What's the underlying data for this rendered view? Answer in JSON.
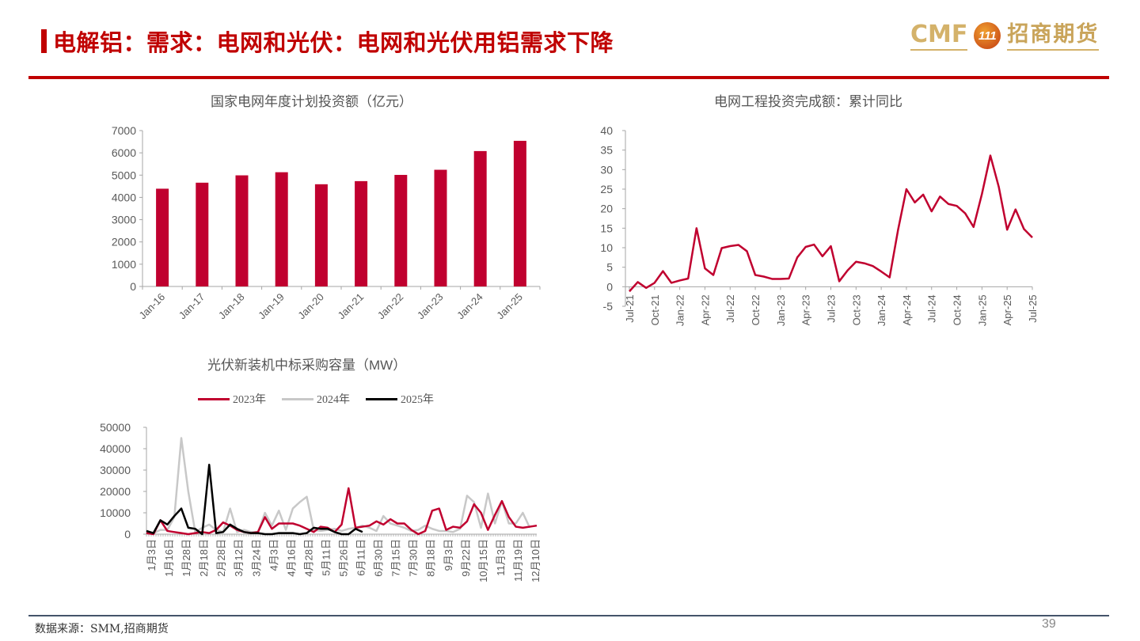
{
  "header": {
    "title": "电解铝：需求：电网和光伏：电网和光伏用铝需求下降",
    "logo_text": "CMF",
    "logo_badge": "111",
    "logo_cn": "招商期货"
  },
  "footer": {
    "source": "数据来源：SMM,招商期货",
    "page_number": "39"
  },
  "colors": {
    "accent": "#c00000",
    "series_red": "#c0002f",
    "series_gray": "#c8c8c8",
    "series_black": "#000000",
    "logo_gold": "#d4b26a"
  },
  "chart_data": [
    {
      "type": "bar",
      "title": "国家电网年度计划投资额（亿元）",
      "categories": [
        "Jan-16",
        "Jan-17",
        "Jan-18",
        "Jan-19",
        "Jan-20",
        "Jan-21",
        "Jan-22",
        "Jan-23",
        "Jan-24",
        "Jan-25"
      ],
      "values": [
        4390,
        4660,
        4990,
        5130,
        4590,
        4730,
        5010,
        5240,
        6080,
        6540
      ],
      "yticks": [
        0,
        1000,
        2000,
        3000,
        4000,
        5000,
        6000,
        7000
      ],
      "ylim": [
        0,
        7000
      ],
      "xlabel": "",
      "ylabel": "",
      "grid": false,
      "legend": null
    },
    {
      "type": "line",
      "title": "电网工程投资完成额：累计同比",
      "x_ticks": [
        "Jul-21",
        "Oct-21",
        "Jan-22",
        "Apr-22",
        "Jul-22",
        "Oct-22",
        "Jan-23",
        "Apr-23",
        "Jul-23",
        "Oct-23",
        "Jan-24",
        "Apr-24",
        "Jul-24",
        "Oct-24",
        "Jan-25",
        "Apr-25",
        "Jul-25"
      ],
      "series": [
        {
          "name": "累计同比",
          "values": [
            -1.2,
            1.2,
            -0.3,
            1.0,
            4.0,
            1.0,
            1.6,
            2.1,
            15.0,
            4.7,
            3.0,
            9.9,
            10.4,
            10.7,
            9.1,
            3.0,
            2.6,
            2.0,
            2.0,
            2.1,
            7.5,
            10.2,
            10.8,
            7.8,
            10.4,
            1.4,
            4.2,
            6.4,
            6.0,
            5.3,
            3.9,
            2.4,
            14.5,
            25.0,
            21.6,
            23.6,
            19.3,
            23.1,
            21.2,
            20.7,
            18.8,
            15.3,
            23.8,
            33.6,
            25.6,
            14.6,
            19.8,
            14.8,
            12.6
          ]
        }
      ],
      "yticks": [
        -5,
        0,
        5,
        10,
        15,
        20,
        25,
        30,
        35,
        40
      ],
      "ylim": [
        -5,
        40
      ],
      "xlabel": "",
      "ylabel": "",
      "grid": false,
      "legend": null
    },
    {
      "type": "line",
      "title": "光伏新装机中标采购容量（MW）",
      "x_ticks": [
        "1月3日",
        "1月16日",
        "1月28日",
        "2月18日",
        "2月28日",
        "3月12日",
        "3月24日",
        "4月3日",
        "4月16日",
        "4月28日",
        "5月11日",
        "5月26日",
        "6月11日",
        "6月30日",
        "7月15日",
        "7月30日",
        "8月18日",
        "9月3日",
        "9月22日",
        "10月15日",
        "11月3日",
        "11月19日",
        "12月10日"
      ],
      "series": [
        {
          "name": "2023年",
          "values": [
            500,
            0,
            6500,
            1500,
            1000,
            500,
            0,
            500,
            1000,
            500,
            2000,
            5500,
            4000,
            2000,
            1000,
            500,
            1000,
            8000,
            2500,
            5000,
            5000,
            5000,
            4000,
            2500,
            1000,
            3500,
            3000,
            1000,
            4500,
            21500,
            3000,
            3500,
            4000,
            6000,
            4500,
            7000,
            5000,
            5000,
            2000,
            0,
            1500,
            11000,
            12000,
            2000,
            3500,
            3000,
            6000,
            14000,
            10000,
            2000,
            9000,
            15500,
            8000,
            3500,
            3000,
            3500,
            4000
          ]
        },
        {
          "name": "2024年",
          "values": [
            1500,
            500,
            2000,
            2000,
            8000,
            45000,
            20000,
            1000,
            3000,
            4500,
            2000,
            1000,
            12000,
            1000,
            2000,
            1000,
            1000,
            10000,
            4000,
            11000,
            2000,
            12000,
            15000,
            17500,
            2000,
            1500,
            2000,
            2500,
            1500,
            2500,
            3000,
            4000,
            3000,
            1500,
            8500,
            5000,
            4000,
            3000,
            1500,
            2000,
            4000,
            2500,
            1500,
            1500,
            1000,
            2500,
            18000,
            15000,
            3000,
            19000,
            5000,
            15500,
            5000,
            5000,
            10000,
            3000
          ]
        },
        {
          "name": "2025年",
          "values": [
            1500,
            500,
            6500,
            4500,
            8500,
            12000,
            3000,
            2500,
            0,
            32500,
            500,
            1000,
            4500,
            2500,
            1000,
            500,
            500,
            0,
            0,
            500,
            500,
            500,
            0,
            500,
            3000,
            2500,
            2500,
            1000,
            0,
            0,
            2500,
            1000
          ]
        }
      ],
      "yticks": [
        0,
        10000,
        20000,
        30000,
        40000,
        50000
      ],
      "ylim": [
        0,
        50000
      ],
      "legend": {
        "position": "top",
        "entries": [
          "2023年",
          "2024年",
          "2025年"
        ]
      },
      "xlabel": "",
      "ylabel": "",
      "grid": false
    }
  ]
}
